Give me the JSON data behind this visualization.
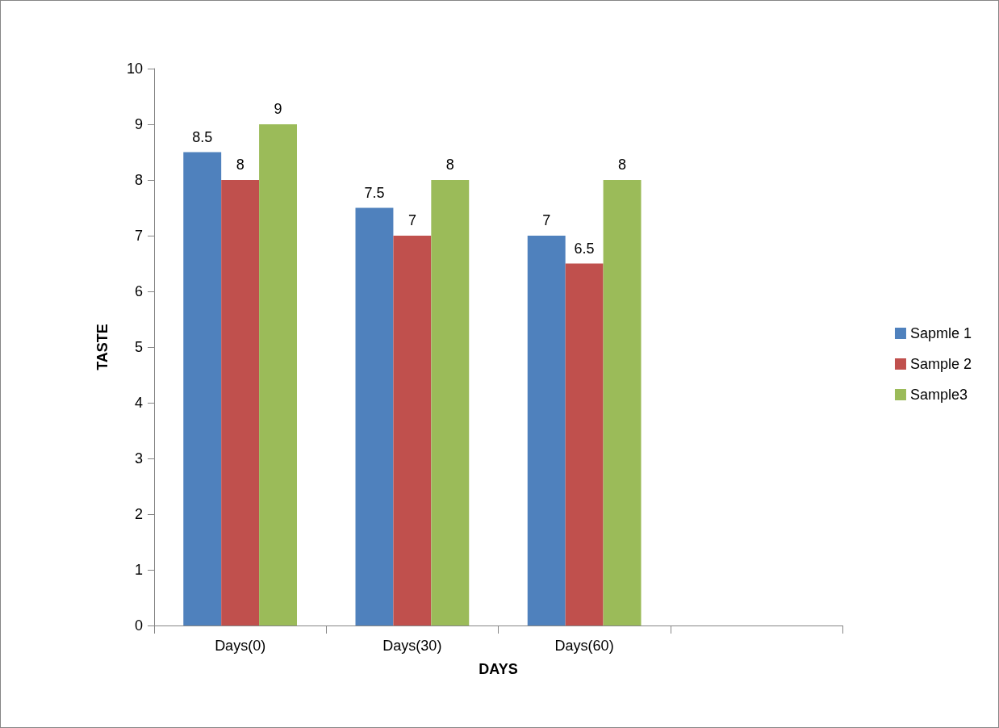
{
  "chart_data": {
    "type": "bar",
    "xlabel": "DAYS",
    "ylabel": "TASTE",
    "categories": [
      "Days(0)",
      "Days(30)",
      "Days(60)",
      null
    ],
    "series": [
      {
        "name": "Sapmle 1",
        "color": "#4f81bd",
        "values": [
          8.5,
          7.5,
          7,
          null
        ]
      },
      {
        "name": "Sample 2",
        "color": "#c0504d",
        "values": [
          8,
          7,
          6.5,
          null
        ]
      },
      {
        "name": "Sample3",
        "color": "#9bbb59",
        "values": [
          9,
          8,
          8,
          null
        ]
      }
    ],
    "ylim": [
      0,
      10
    ],
    "yticks": [
      0,
      1,
      2,
      3,
      4,
      5,
      6,
      7,
      8,
      9,
      10
    ],
    "grid": false,
    "legend": "right",
    "data_labels": true
  }
}
